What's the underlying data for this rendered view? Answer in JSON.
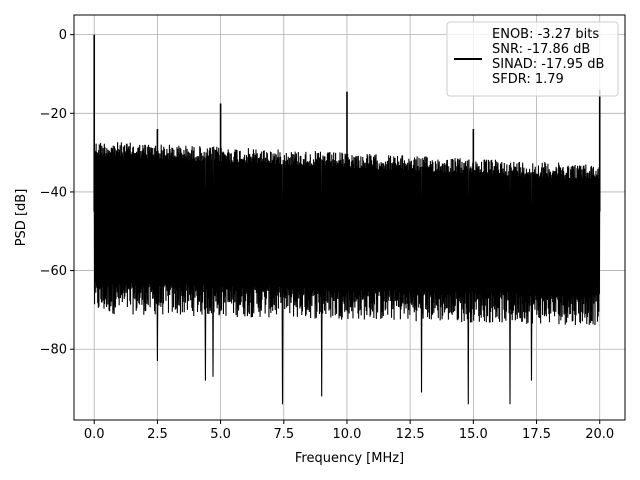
{
  "chart_data": {
    "type": "line",
    "title": "",
    "xlabel": "Frequency [MHz]",
    "ylabel": "PSD [dB]",
    "xlim": [
      -0.8,
      21.0
    ],
    "ylim": [
      -98,
      5
    ],
    "grid": true,
    "legend_position": "top-right",
    "x_ticks": [
      0.0,
      2.5,
      5.0,
      7.5,
      10.0,
      12.5,
      15.0,
      17.5,
      20.0
    ],
    "x_tick_labels": [
      "0.0",
      "2.5",
      "5.0",
      "7.5",
      "10.0",
      "12.5",
      "15.0",
      "17.5",
      "20.0"
    ],
    "y_ticks": [
      0,
      -20,
      -40,
      -60,
      -80
    ],
    "y_tick_labels": [
      "0",
      "−20",
      "−40",
      "−60",
      "−80"
    ],
    "line_color": "#000000",
    "legend_lines": [
      "ENOB: -3.27 bits",
      "SNR: -17.86 dB",
      "SINAD: -17.95 dB",
      "SFDR: 1.79"
    ],
    "series": [
      {
        "x_range": [
          0.0,
          20.0
        ],
        "noise_floor_upper_db": [
          -27,
          -33
        ],
        "noise_floor_lower_db": [
          -71,
          -74
        ],
        "minima": [
          {
            "x": 2.5,
            "y": -83
          },
          {
            "x": 4.4,
            "y": -88
          },
          {
            "x": 4.7,
            "y": -87
          },
          {
            "x": 7.45,
            "y": -94
          },
          {
            "x": 9.0,
            "y": -92
          },
          {
            "x": 12.95,
            "y": -91
          },
          {
            "x": 14.8,
            "y": -94
          },
          {
            "x": 16.45,
            "y": -94
          },
          {
            "x": 17.3,
            "y": -88
          }
        ],
        "peaks": [
          {
            "x": 0.0,
            "y": 0
          },
          {
            "x": 2.5,
            "y": -24
          },
          {
            "x": 5.0,
            "y": -17.5
          },
          {
            "x": 10.0,
            "y": -14.5
          },
          {
            "x": 15.0,
            "y": -24
          },
          {
            "x": 20.0,
            "y": -14
          }
        ]
      }
    ]
  }
}
